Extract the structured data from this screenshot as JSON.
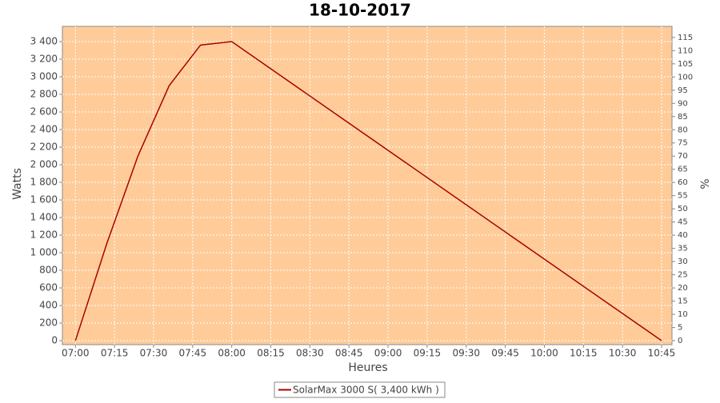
{
  "chart_data": {
    "type": "line",
    "title": "18-10-2017",
    "x_label": "Heures",
    "y_label": "Watts",
    "y2_label": "%",
    "x": [
      "07:00",
      "07:12",
      "07:24",
      "07:36",
      "07:48",
      "08:00",
      "10:45"
    ],
    "series": [
      {
        "name": "SolarMax 3000 S( 3,400 kWh )",
        "color": "#aa0000",
        "values": [
          0,
          1100,
          2100,
          2900,
          3360,
          3400,
          0
        ]
      }
    ],
    "xlim": [
      "06:55",
      "10:49"
    ],
    "xticks": [
      "07:00",
      "07:15",
      "07:30",
      "07:45",
      "08:00",
      "08:15",
      "08:30",
      "08:45",
      "09:00",
      "09:15",
      "09:30",
      "09:45",
      "10:00",
      "10:15",
      "10:30",
      "10:45"
    ],
    "ylim": [
      -45,
      3573
    ],
    "yticks": [
      0,
      200,
      400,
      600,
      800,
      {
        "value": 1000,
        "label": "1 000"
      },
      {
        "value": 1200,
        "label": "1 200"
      },
      {
        "value": 1400,
        "label": "1 400"
      },
      {
        "value": 1600,
        "label": "1 600"
      },
      {
        "value": 1800,
        "label": "1 800"
      },
      {
        "value": 2000,
        "label": "2 000"
      },
      {
        "value": 2200,
        "label": "2 200"
      },
      {
        "value": 2400,
        "label": "2 400"
      },
      {
        "value": 2600,
        "label": "2 600"
      },
      {
        "value": 2800,
        "label": "2 800"
      },
      {
        "value": 3000,
        "label": "3 000"
      },
      {
        "value": 3200,
        "label": "3 200"
      },
      {
        "value": 3400,
        "label": "3 400"
      }
    ],
    "y2lim": [
      -1.5,
      119.2
    ],
    "y2ticks": [
      0,
      5,
      10,
      15,
      20,
      25,
      30,
      35,
      40,
      45,
      50,
      55,
      60,
      65,
      70,
      75,
      80,
      85,
      90,
      95,
      100,
      105,
      110,
      115
    ],
    "grid": true,
    "background": "#ffcc99"
  }
}
